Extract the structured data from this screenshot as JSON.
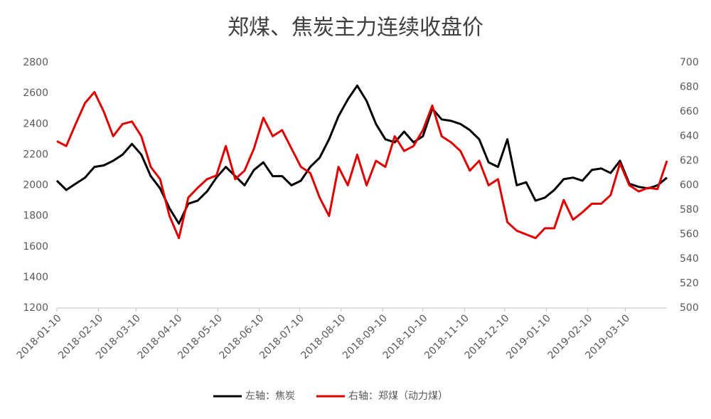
{
  "chart_data": {
    "type": "line",
    "title": "郑煤、焦炭主力连续收盘价",
    "x": [
      "2018-01-10",
      "2018-01-17",
      "2018-01-24",
      "2018-01-31",
      "2018-02-07",
      "2018-02-14",
      "2018-02-21",
      "2018-02-28",
      "2018-03-07",
      "2018-03-14",
      "2018-03-21",
      "2018-03-28",
      "2018-04-04",
      "2018-04-11",
      "2018-04-18",
      "2018-04-25",
      "2018-05-02",
      "2018-05-09",
      "2018-05-16",
      "2018-05-23",
      "2018-05-30",
      "2018-06-06",
      "2018-06-13",
      "2018-06-20",
      "2018-06-27",
      "2018-07-04",
      "2018-07-11",
      "2018-07-18",
      "2018-07-25",
      "2018-08-01",
      "2018-08-08",
      "2018-08-15",
      "2018-08-22",
      "2018-08-29",
      "2018-09-05",
      "2018-09-12",
      "2018-09-19",
      "2018-09-26",
      "2018-10-03",
      "2018-10-10",
      "2018-10-17",
      "2018-10-24",
      "2018-10-31",
      "2018-11-07",
      "2018-11-14",
      "2018-11-21",
      "2018-11-28",
      "2018-12-05",
      "2018-12-12",
      "2018-12-19",
      "2018-12-26",
      "2019-01-02",
      "2019-01-09",
      "2019-01-16",
      "2019-01-23",
      "2019-01-30",
      "2019-02-06",
      "2019-02-13",
      "2019-02-20",
      "2019-02-27",
      "2019-03-06",
      "2019-03-13",
      "2019-03-20",
      "2019-03-27",
      "2019-04-03",
      "2019-04-10"
    ],
    "xlim": [
      "2018-01-10",
      "2019-04-10"
    ],
    "xticks": [
      "2018-01-10",
      "2018-02-10",
      "2018-03-10",
      "2018-04-10",
      "2018-05-10",
      "2018-06-10",
      "2018-07-10",
      "2018-08-10",
      "2018-09-10",
      "2018-10-10",
      "2018-11-10",
      "2018-12-10",
      "2019-01-10",
      "2019-02-10",
      "2019-03-10"
    ],
    "ylim": [
      1200,
      2800
    ],
    "yticks": [
      1200,
      1400,
      1600,
      1800,
      2000,
      2200,
      2400,
      2600,
      2800
    ],
    "y2lim": [
      500,
      700
    ],
    "y2ticks": [
      500,
      520,
      540,
      560,
      580,
      600,
      620,
      640,
      660,
      680,
      700
    ],
    "grid": false,
    "legend": "bottom",
    "series": [
      {
        "name": "左轴：焦炭",
        "color": "#000000",
        "axis": "y",
        "values": [
          2030,
          1970,
          2010,
          2050,
          2120,
          2130,
          2160,
          2200,
          2270,
          2200,
          2060,
          1980,
          1850,
          1750,
          1880,
          1900,
          1960,
          2050,
          2120,
          2060,
          2000,
          2100,
          2150,
          2060,
          2060,
          2000,
          2030,
          2120,
          2180,
          2300,
          2450,
          2560,
          2650,
          2550,
          2400,
          2300,
          2280,
          2350,
          2280,
          2320,
          2500,
          2430,
          2420,
          2400,
          2360,
          2300,
          2150,
          2120,
          2300,
          2000,
          2020,
          1900,
          1920,
          1970,
          2040,
          2050,
          2030,
          2100,
          2110,
          2080,
          2160,
          2010,
          1990,
          1980,
          2000,
          2050
        ]
      },
      {
        "name": "右轴：郑煤（动力煤）",
        "color": "#e00000",
        "axis": "y2",
        "values": [
          636,
          632,
          650,
          667,
          676,
          660,
          640,
          650,
          652,
          640,
          615,
          605,
          575,
          557,
          590,
          598,
          605,
          608,
          632,
          605,
          612,
          630,
          655,
          640,
          645,
          630,
          615,
          610,
          590,
          575,
          615,
          600,
          625,
          600,
          620,
          615,
          640,
          628,
          632,
          645,
          665,
          640,
          635,
          628,
          612,
          620,
          600,
          605,
          570,
          563,
          560,
          557,
          565,
          565,
          588,
          572,
          578,
          585,
          585,
          592,
          618,
          600,
          595,
          598,
          597,
          620
        ]
      }
    ]
  }
}
